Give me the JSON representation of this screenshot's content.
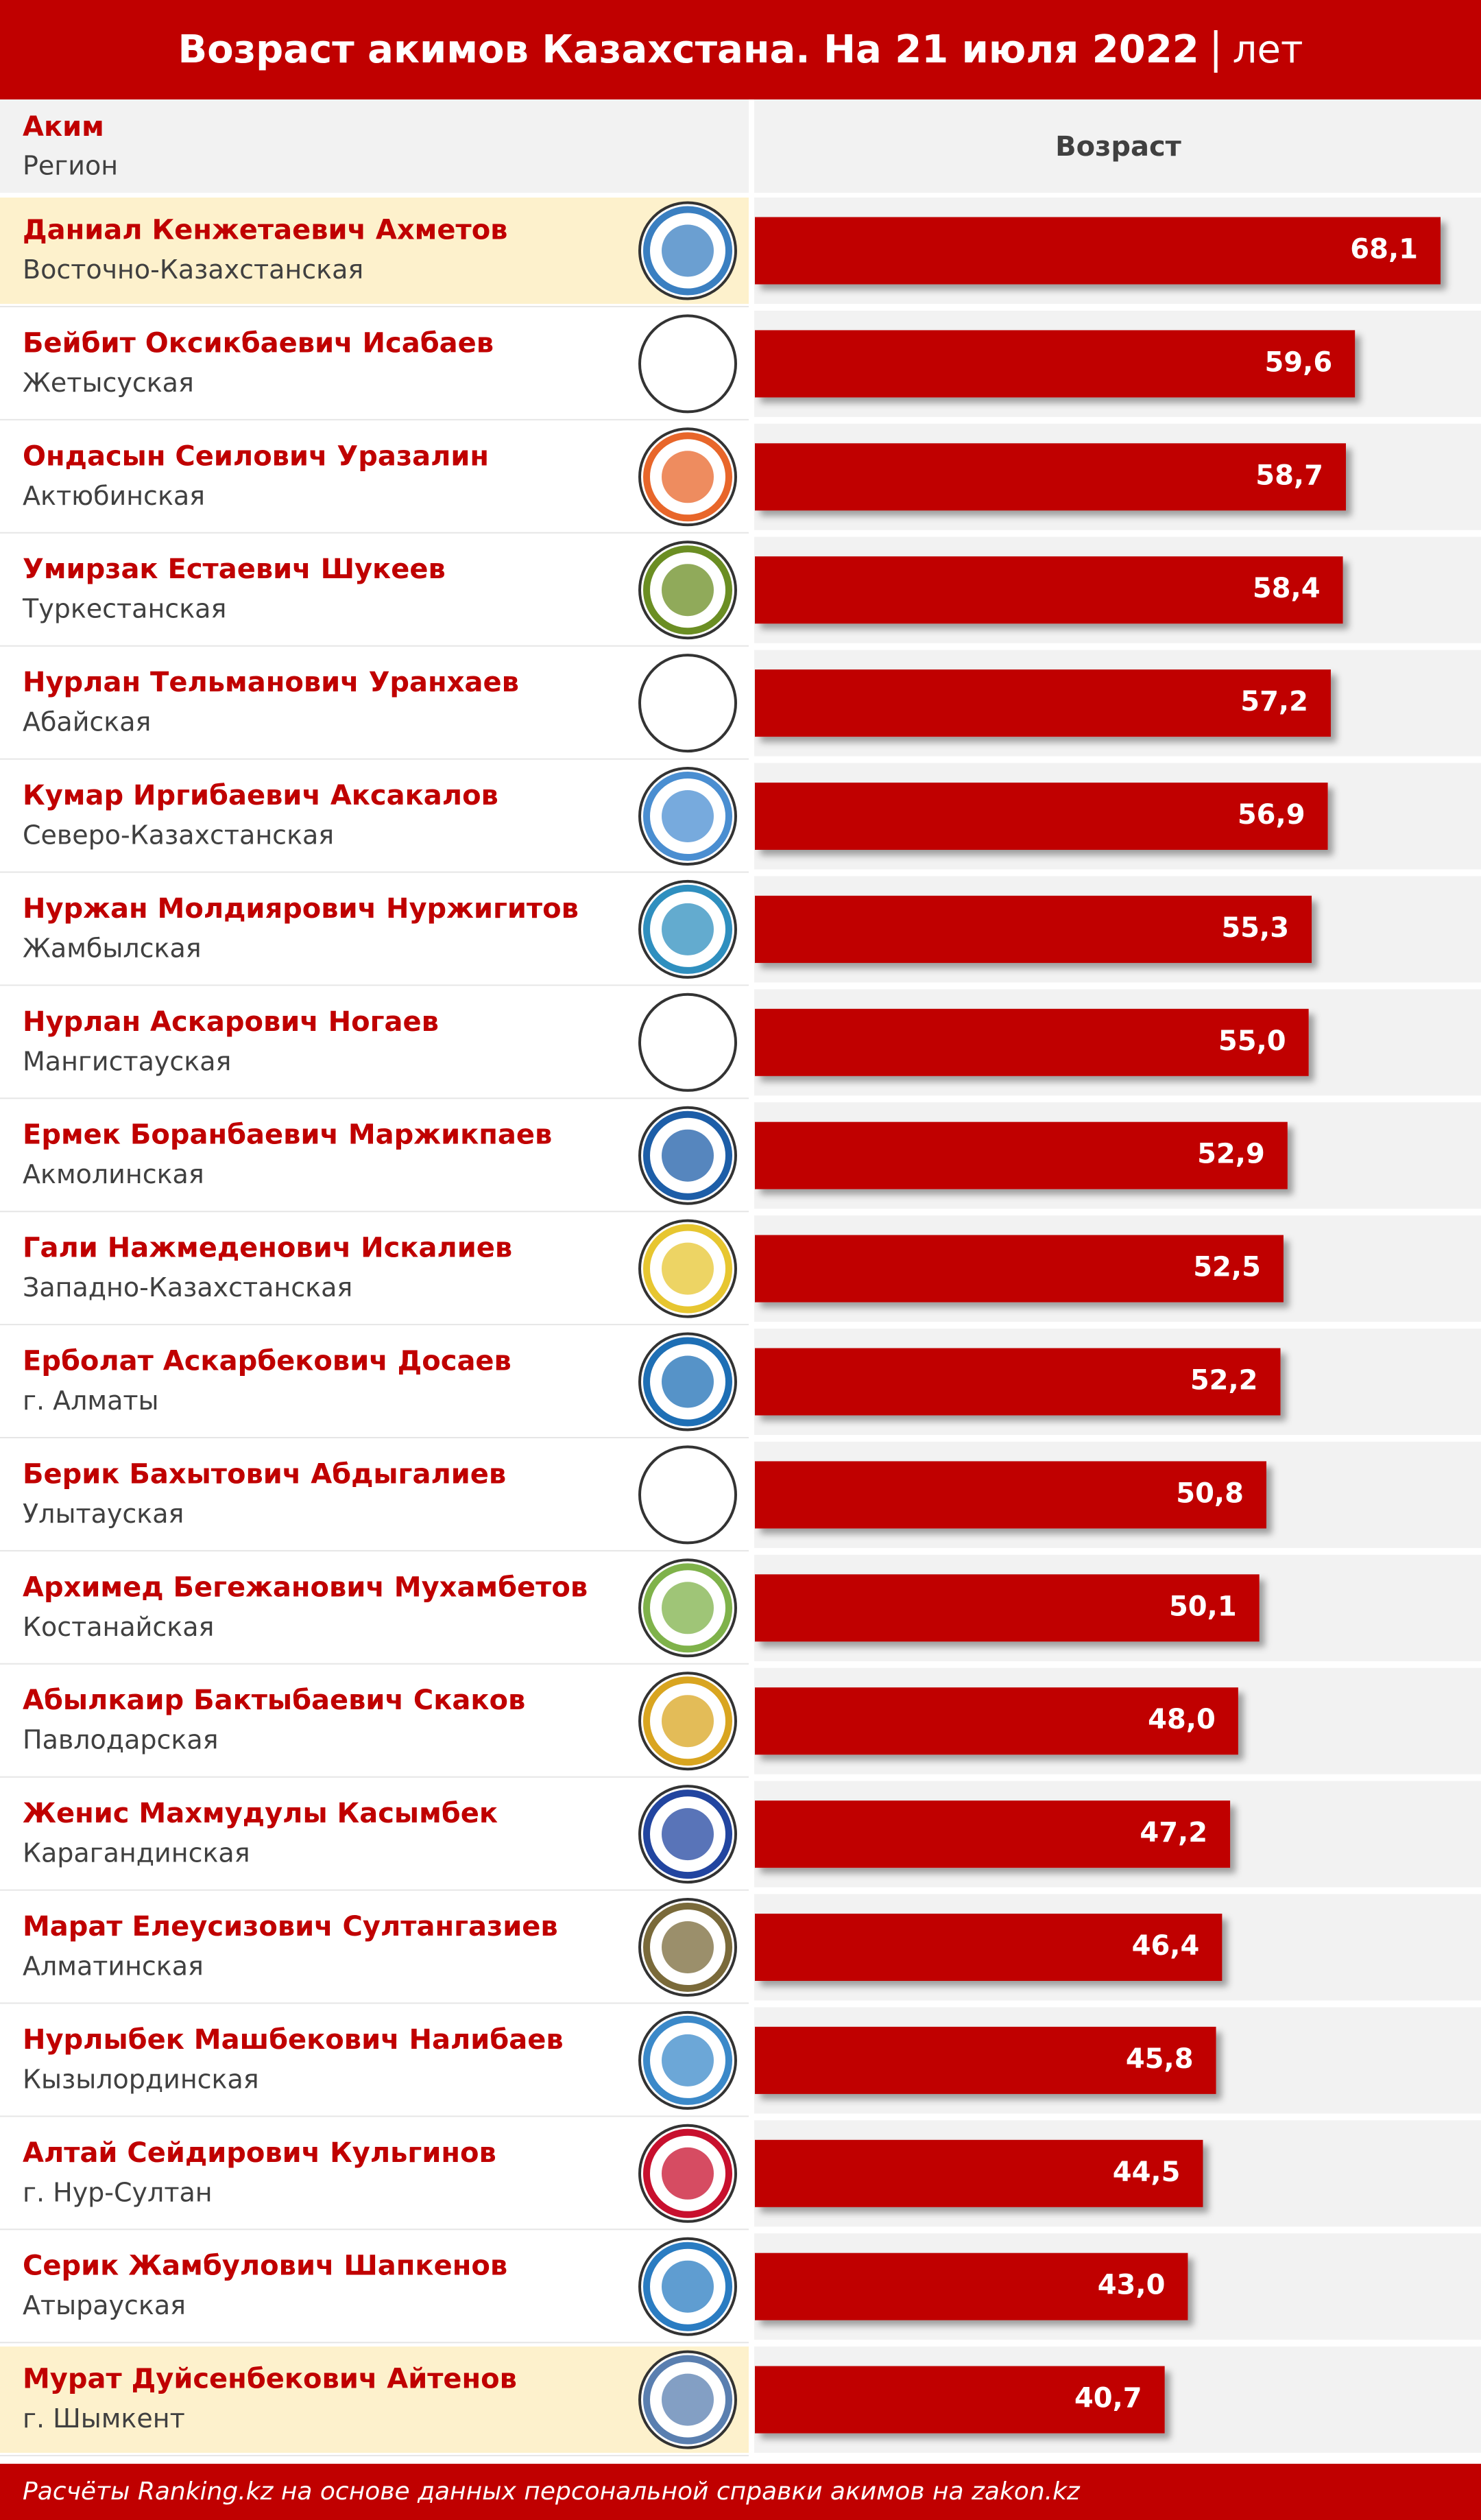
{
  "chart_data": {
    "type": "bar",
    "title": "Возраст акимов Казахстана. На 21 июля 2022",
    "unit": "лет",
    "header": {
      "name": "Аким",
      "region": "Регион",
      "value": "Возраст"
    },
    "color": "#c00000",
    "categories": [
      "Даниал Кенжетаевич Ахметов",
      "Бейбит Оксикбаевич Исабаев",
      "Ондасын Сеилович Уразалин",
      "Умирзак Естаевич Шукеев",
      "Нурлан Тельманович Уранхаев",
      "Кумар Иргибаевич Аксакалов",
      "Нуржан Молдиярович Нуржигитов",
      "Нурлан Аскарович Ногаев",
      "Ермек Боранбаевич Маржикпаев",
      "Гали Нажмеденович Искалиев",
      "Ерболат Аскарбекович Досаев",
      "Берик Бахытович Абдыгалиев",
      "Архимед Бегежанович Мухамбетов",
      "Абылкаир Бактыбаевич Скаков",
      "Женис Махмудулы Касымбек",
      "Марат Елеусизович Султангазиев",
      "Нурлыбек Машбекович Налибаев",
      "Алтай Сейдирович Кульгинов",
      "Серик Жамбулович Шапкенов",
      "Мурат Дуйсенбекович Айтенов"
    ],
    "regions": [
      "Восточно-Казахстанская",
      "Жетысуская",
      "Актюбинская",
      "Туркестанская",
      "Абайская",
      "Северо-Казахстанская",
      "Жамбылская",
      "Мангистауская",
      "Акмолинская",
      "Западно-Казахстанская",
      "г. Алматы",
      "Улытауская",
      "Костанайская",
      "Павлодарская",
      "Карагандинская",
      "Алматинская",
      "Кызылординская",
      "г. Нур-Султан",
      "Атырауская",
      "г. Шымкент"
    ],
    "values": [
      68.1,
      59.6,
      58.7,
      58.4,
      57.2,
      56.9,
      55.3,
      55.0,
      52.9,
      52.5,
      52.2,
      50.8,
      50.1,
      48.0,
      47.2,
      46.4,
      45.8,
      44.5,
      43.0,
      40.7
    ],
    "value_labels": [
      "68,1",
      "59,6",
      "58,7",
      "58,4",
      "57,2",
      "56,9",
      "55,3",
      "55,0",
      "52,9",
      "52,5",
      "52,2",
      "50,8",
      "50,1",
      "48,0",
      "47,2",
      "46,4",
      "45,8",
      "44,5",
      "43,0",
      "40,7"
    ],
    "source": "Расчёты Ranking.kz на основе данных персональной справки акимов на zakon.kz"
  }
}
